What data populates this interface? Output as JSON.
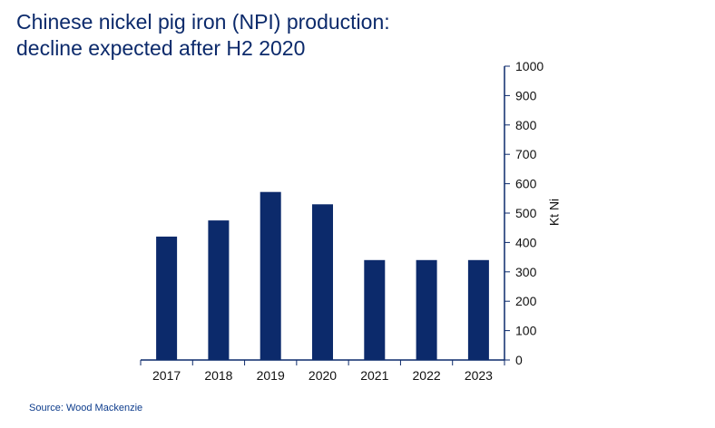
{
  "chart_data": {
    "type": "bar",
    "title_lines": [
      "Chinese nickel pig iron (NPI) production:",
      "decline expected after H2 2020"
    ],
    "categories": [
      "2017",
      "2018",
      "2019",
      "2020",
      "2021",
      "2022",
      "2023"
    ],
    "values": [
      420,
      475,
      572,
      530,
      340,
      340,
      340
    ],
    "ylabel": "Kt Ni",
    "ylim": [
      0,
      1000
    ],
    "yticks": [
      "0",
      "100",
      "200",
      "300",
      "400",
      "500",
      "600",
      "700",
      "800",
      "900",
      "1000"
    ],
    "y_axis_side": "right",
    "grid": false,
    "bar_color": "#0c2a6b",
    "axis_color": "#0c2a6b",
    "source": "Source: Wood Mackenzie"
  }
}
